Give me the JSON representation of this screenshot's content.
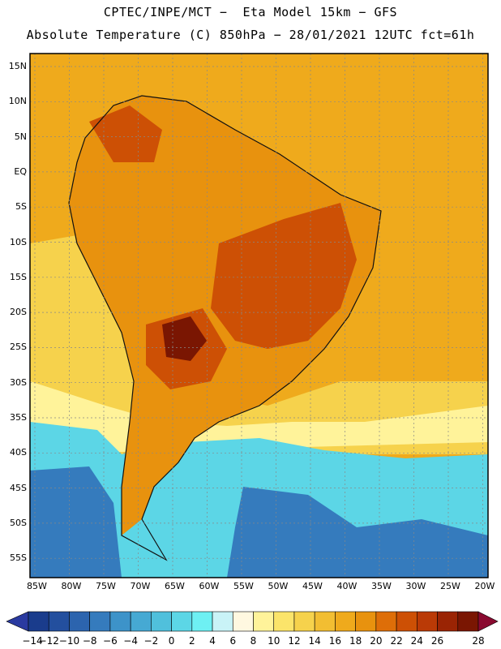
{
  "header": {
    "line1": "CPTEC/INPE/MCT −  Eta Model 15km − GFS",
    "line2": "Absolute Temperature (C) 850hPa − 28/01/2021 12UTC fct=61h"
  },
  "map": {
    "lat_labels": [
      "15N",
      "10N",
      "5N",
      "EQ",
      "5S",
      "10S",
      "15S",
      "20S",
      "25S",
      "30S",
      "35S",
      "40S",
      "45S",
      "50S",
      "55S"
    ],
    "lon_labels": [
      "85W",
      "80W",
      "75W",
      "70W",
      "65W",
      "60W",
      "55W",
      "50W",
      "45W",
      "40W",
      "35W",
      "30W",
      "25W",
      "20W"
    ]
  },
  "colorbar": {
    "labels": [
      "-14",
      "-12",
      "-10",
      "-8",
      "-6",
      "-4",
      "-2",
      "0",
      "2",
      "4",
      "6",
      "8",
      "10",
      "12",
      "14",
      "16",
      "18",
      "20",
      "22",
      "24",
      "26",
      "28"
    ],
    "colors": [
      "#1a3c8c",
      "#234f9e",
      "#2c64ae",
      "#357bbd",
      "#3d93c9",
      "#46a9d3",
      "#50c0dc",
      "#5cd6e6",
      "#6ef0f3",
      "#c9f3f7",
      "#fff8e0",
      "#fff39a",
      "#fbe46a",
      "#f6d24c",
      "#f2be32",
      "#efaa1c",
      "#e8920e",
      "#de6e08",
      "#cd5005",
      "#ba3a06",
      "#9a2404",
      "#7a1602"
    ],
    "min_color": "#2a3aa0",
    "max_color": "#8a0a30"
  },
  "colors": {
    "ocean_warm": "#efaa1c",
    "land_warm": "#e8920e",
    "land_hot": "#cd5005",
    "land_hottest": "#7a1602",
    "mid_yellow": "#f6d24c",
    "pale": "#fff39a",
    "cool_cyan": "#5cd6e6",
    "cold_blue": "#357bbd",
    "coast": "#111111"
  }
}
